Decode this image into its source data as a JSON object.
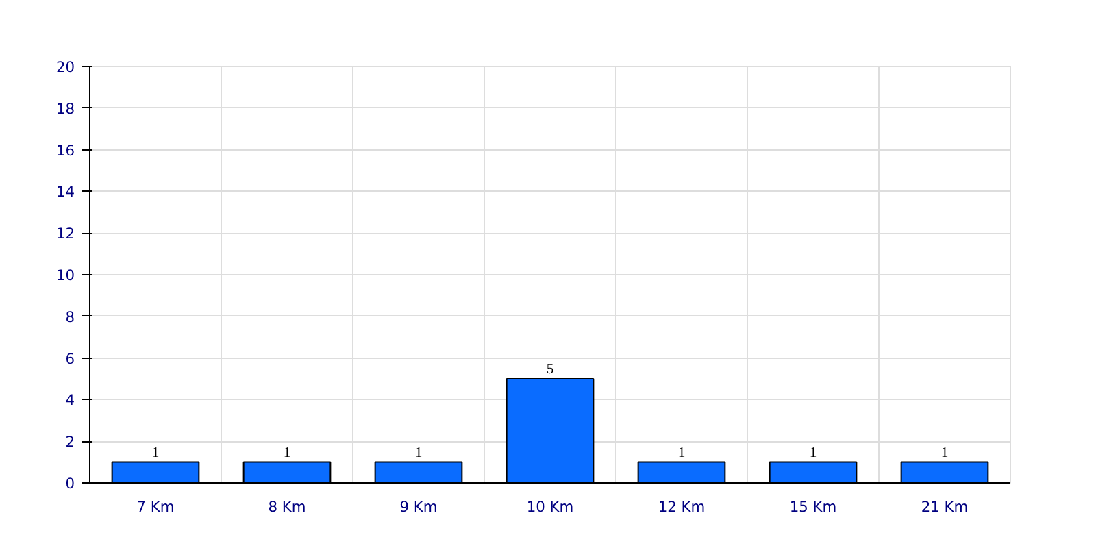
{
  "chart_data": {
    "type": "bar",
    "categories": [
      "7 Km",
      "8 Km",
      "9 Km",
      "10 Km",
      "12 Km",
      "15 Km",
      "21 Km"
    ],
    "values": [
      1,
      1,
      1,
      5,
      1,
      1,
      1
    ],
    "color": "#0a6cff",
    "ylim": [
      0,
      20
    ],
    "yticks": [
      0,
      2,
      4,
      6,
      8,
      10,
      12,
      14,
      16,
      18,
      20
    ],
    "grid": true,
    "data_labels": true
  }
}
